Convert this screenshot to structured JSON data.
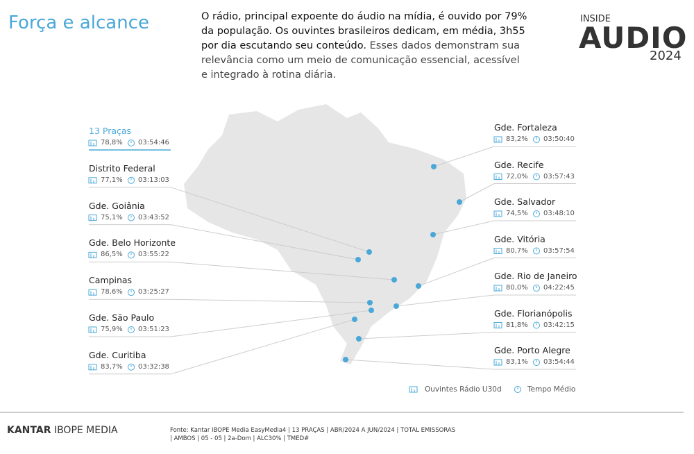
{
  "header": {
    "title": "Força e alcance",
    "intro": {
      "emphasis": "O rádio, principal expoente do áudio na mídia, é ouvido por 79% da população. Os ouvintes brasileiros dedicam, em média, 3h55 por dia escutando seu conteúdo.",
      "rest": "Esses dados demonstram sua relevância como um meio de comunicação essencial, acessível e integrado à rotina diária."
    },
    "logo": {
      "top": "INSIDE",
      "main": "AUDIO",
      "year": "2024"
    }
  },
  "cities_left": [
    {
      "name": "13 Praças",
      "reach": "78,8%",
      "time": "03:54:46"
    },
    {
      "name": "Distrito Federal",
      "reach": "77,1%",
      "time": "03:13:03"
    },
    {
      "name": "Gde. Goiânia",
      "reach": "75,1%",
      "time": "03:43:52"
    },
    {
      "name": "Gde. Belo Horizonte",
      "reach": "86,5%",
      "time": "03:55:22"
    },
    {
      "name": "Campinas",
      "reach": "78,6%",
      "time": "03:25:27"
    },
    {
      "name": "Gde. São Paulo",
      "reach": "75,9%",
      "time": "03:51:23"
    },
    {
      "name": "Gde. Curitiba",
      "reach": "83,7%",
      "time": "03:32:38"
    }
  ],
  "cities_right": [
    {
      "name": "Gde. Fortaleza",
      "reach": "83,2%",
      "time": "03:50:40"
    },
    {
      "name": "Gde. Recife",
      "reach": "72,0%",
      "time": "03:57:43"
    },
    {
      "name": "Gde. Salvador",
      "reach": "74,5%",
      "time": "03:48:10"
    },
    {
      "name": "Gde. Vitória",
      "reach": "80,7%",
      "time": "03:57:54"
    },
    {
      "name": "Gde. Rio de Janeiro",
      "reach": "80,0%",
      "time": "04:22:45"
    },
    {
      "name": "Gde. Florianópolis",
      "reach": "81,8%",
      "time": "03:42:15"
    },
    {
      "name": "Gde. Porto Alegre",
      "reach": "83,1%",
      "time": "03:54:44"
    }
  ],
  "legend": {
    "reach": "Ouvintes Rádio U30d",
    "time": "Tempo Médio"
  },
  "footer": {
    "brand_bold": "KANTAR",
    "brand_rest": "IBOPE MEDIA",
    "source_lines": [
      "Fonte: Kantar IBOPE Media EasyMedia4 | 13 PRAÇAS | ABR/2024 A JUN/2024 | TOTAL EMISSORAS",
      "| AMBOS | 05 - 05 | 2a-Dom | ALC30% | TMED#"
    ]
  }
}
